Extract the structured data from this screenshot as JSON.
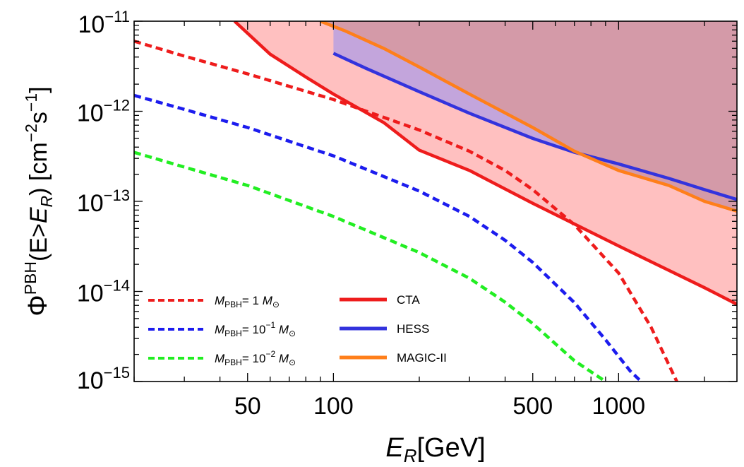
{
  "chart_data": {
    "type": "line",
    "title": "",
    "xlabel": {
      "var": "E",
      "sub": "R",
      "unit": "[GeV]"
    },
    "ylabel": {
      "phi": "Φ",
      "sup": "PBH",
      "paren_open": "(E>",
      "var": "E",
      "sub": "R",
      "paren_close": ")",
      "unit_open": " [cm",
      "exp1": "−2",
      "mid": "s",
      "exp2": "−1",
      "unit_close": "]"
    },
    "xscale": "log",
    "yscale": "log",
    "xlim": [
      20,
      2600
    ],
    "ylim": [
      1e-15,
      1e-11
    ],
    "xticks": [
      {
        "value": 50,
        "label": "50"
      },
      {
        "value": 100,
        "label": "100"
      },
      {
        "value": 500,
        "label": "500"
      },
      {
        "value": 1000,
        "label": "1000"
      }
    ],
    "yticks": [
      {
        "value": 1e-11,
        "base": "10",
        "exp": "−11"
      },
      {
        "value": 1e-12,
        "base": "10",
        "exp": "−12"
      },
      {
        "value": 1e-13,
        "base": "10",
        "exp": "−13"
      },
      {
        "value": 1e-14,
        "base": "10",
        "exp": "−14"
      },
      {
        "value": 1e-15,
        "base": "10",
        "exp": "−15"
      }
    ],
    "series": [
      {
        "name": "M_PBH = 1 M_sun",
        "style": "dashed",
        "color": "#ee1c1c",
        "points": [
          [
            20,
            6e-12
          ],
          [
            30,
            4.1e-12
          ],
          [
            50,
            2.6e-12
          ],
          [
            100,
            1.35e-12
          ],
          [
            200,
            6.2e-13
          ],
          [
            300,
            3.6e-13
          ],
          [
            400,
            2.2e-13
          ],
          [
            500,
            1.35e-13
          ],
          [
            700,
            5.5e-14
          ],
          [
            1000,
            1.6e-14
          ],
          [
            1300,
            4e-15
          ],
          [
            1600,
            1e-15
          ]
        ]
      },
      {
        "name": "M_PBH = 10^-1 M_sun",
        "style": "dashed",
        "color": "#1c1cee",
        "points": [
          [
            20,
            1.5e-12
          ],
          [
            30,
            1.05e-12
          ],
          [
            50,
            6.6e-13
          ],
          [
            100,
            3.2e-13
          ],
          [
            200,
            1.3e-13
          ],
          [
            300,
            6.8e-14
          ],
          [
            400,
            3.7e-14
          ],
          [
            500,
            2.1e-14
          ],
          [
            700,
            7.5e-15
          ],
          [
            900,
            2.9e-15
          ],
          [
            1100,
            1.3e-15
          ],
          [
            1200,
            1e-15
          ]
        ]
      },
      {
        "name": "M_PBH = 10^-2 M_sun",
        "style": "dashed",
        "color": "#22ee22",
        "points": [
          [
            20,
            3.5e-13
          ],
          [
            30,
            2.4e-13
          ],
          [
            50,
            1.5e-13
          ],
          [
            100,
            6.8e-14
          ],
          [
            200,
            2.7e-14
          ],
          [
            300,
            1.4e-14
          ],
          [
            400,
            7.6e-15
          ],
          [
            500,
            4.4e-15
          ],
          [
            700,
            1.7e-15
          ],
          [
            900,
            1e-15
          ]
        ]
      },
      {
        "name": "CTA",
        "style": "solid",
        "color": "#ee1c1c",
        "points": [
          [
            45,
            1e-11
          ],
          [
            60,
            4.3e-12
          ],
          [
            80,
            2.4e-12
          ],
          [
            100,
            1.55e-12
          ],
          [
            150,
            7.5e-13
          ],
          [
            200,
            3.7e-13
          ],
          [
            300,
            2.2e-13
          ],
          [
            500,
            9.5e-14
          ],
          [
            1000,
            3.2e-14
          ],
          [
            2000,
            1.1e-14
          ],
          [
            2600,
            7.2e-15
          ]
        ]
      },
      {
        "name": "HESS",
        "style": "solid",
        "color": "#3333dd",
        "points": [
          [
            100,
            4.4e-12
          ],
          [
            130,
            3e-12
          ],
          [
            200,
            1.65e-12
          ],
          [
            300,
            9.5e-13
          ],
          [
            500,
            5e-13
          ],
          [
            700,
            3.5e-13
          ],
          [
            1000,
            2.6e-13
          ],
          [
            1500,
            1.8e-13
          ],
          [
            2000,
            1.35e-13
          ],
          [
            2600,
            1.05e-13
          ]
        ]
      },
      {
        "name": "MAGIC-II",
        "style": "solid",
        "color": "#ff7f1a",
        "points": [
          [
            90,
            1e-11
          ],
          [
            110,
            7.8e-12
          ],
          [
            150,
            5e-12
          ],
          [
            200,
            3.1e-12
          ],
          [
            300,
            1.55e-12
          ],
          [
            500,
            6.6e-13
          ],
          [
            700,
            3.6e-13
          ],
          [
            1000,
            2.2e-13
          ],
          [
            1500,
            1.5e-13
          ],
          [
            2000,
            1e-13
          ],
          [
            2600,
            7.8e-14
          ]
        ]
      }
    ],
    "fills": [
      {
        "name": "CTA excluded region",
        "color": "#ffc0c0"
      },
      {
        "name": "HESS excluded region",
        "color": "#b8a0e0"
      },
      {
        "name": "MAGIC-II excluded region",
        "color": "#d49aa8"
      }
    ],
    "legend": {
      "placement": "bottom-left",
      "entries": [
        {
          "var": "M",
          "sub": "PBH",
          "eq": "= ",
          "value": "1",
          "exp": "",
          "unit": "M",
          "unit_sub": "⊙",
          "style": "dashed",
          "color": "#ee1c1c"
        },
        {
          "var": "M",
          "sub": "PBH",
          "eq": "= ",
          "value": "10",
          "exp": "−1",
          "unit": "M",
          "unit_sub": "⊙",
          "style": "dashed",
          "color": "#1c1cee"
        },
        {
          "var": "M",
          "sub": "PBH",
          "eq": "= ",
          "value": "10",
          "exp": "−2",
          "unit": "M",
          "unit_sub": "⊙",
          "style": "dashed",
          "color": "#22ee22"
        },
        {
          "label": "CTA",
          "style": "solid",
          "color": "#ee1c1c"
        },
        {
          "label": "HESS",
          "style": "solid",
          "color": "#3333dd"
        },
        {
          "label": "MAGIC-II",
          "style": "solid",
          "color": "#ff7f1a"
        }
      ]
    }
  }
}
